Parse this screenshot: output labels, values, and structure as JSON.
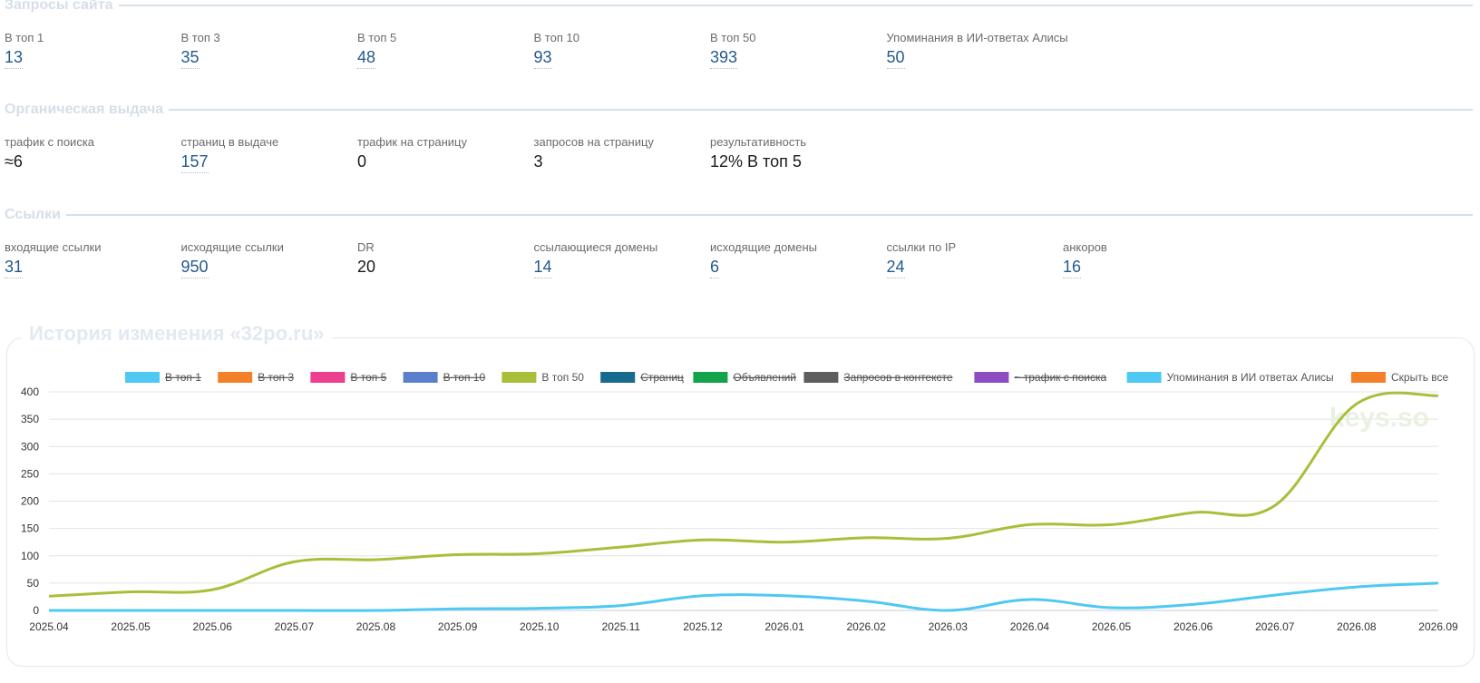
{
  "sections": {
    "queries": {
      "title": "Запросы сайта",
      "items": [
        {
          "label": "В топ 1",
          "value": "13",
          "link": true
        },
        {
          "label": "В топ 3",
          "value": "35",
          "link": true
        },
        {
          "label": "В топ 5",
          "value": "48",
          "link": true
        },
        {
          "label": "В топ 10",
          "value": "93",
          "link": true
        },
        {
          "label": "В топ 50",
          "value": "393",
          "link": true
        },
        {
          "label": "Упоминания в ИИ-ответах Алисы",
          "value": "50",
          "link": true
        }
      ]
    },
    "organic": {
      "title": "Органическая выдача",
      "items": [
        {
          "label": "трафик с поиска",
          "value": "≈6",
          "link": false
        },
        {
          "label": "страниц в выдаче",
          "value": "157",
          "link": true
        },
        {
          "label": "трафик на страницу",
          "value": "0",
          "link": false
        },
        {
          "label": "запросов на страницу",
          "value": "3",
          "link": false
        },
        {
          "label": "результативность",
          "value": "12% В топ 5",
          "link": false
        }
      ]
    },
    "links": {
      "title": "Ссылки",
      "items": [
        {
          "label": "входящие ссылки",
          "value": "31",
          "link": true
        },
        {
          "label": "исходящие ссылки",
          "value": "950",
          "link": true
        },
        {
          "label": "DR",
          "value": "20",
          "link": false
        },
        {
          "label": "ссылающиеся домены",
          "value": "14",
          "link": true
        },
        {
          "label": "исходящие домены",
          "value": "6",
          "link": true
        },
        {
          "label": "ссылки по IP",
          "value": "24",
          "link": true
        },
        {
          "label": "анкоров",
          "value": "16",
          "link": true
        }
      ]
    }
  },
  "history": {
    "title": "История изменения «32po.ru»",
    "watermark": "keys.so"
  },
  "chart_data": {
    "type": "line",
    "categories": [
      "2025.04",
      "2025.05",
      "2025.06",
      "2025.07",
      "2025.08",
      "2025.09",
      "2025.10",
      "2025.11",
      "2025.12",
      "2026.01",
      "2026.02",
      "2026.03",
      "2026.04",
      "2026.05",
      "2026.06",
      "2026.07",
      "2026.08",
      "2026.09"
    ],
    "ylim": [
      0,
      400
    ],
    "yticks": [
      0,
      50,
      100,
      150,
      200,
      250,
      300,
      350,
      400
    ],
    "grid": true,
    "legend_position": "top",
    "legend": [
      {
        "name": "В топ 1",
        "color": "#4fc8f2",
        "active": false
      },
      {
        "name": "В топ 3",
        "color": "#f5802a",
        "active": false
      },
      {
        "name": "В топ 5",
        "color": "#ec3f8e",
        "active": false
      },
      {
        "name": "В топ 10",
        "color": "#5b80cb",
        "active": false
      },
      {
        "name": "В топ 50",
        "color": "#a9bf3a",
        "active": true
      },
      {
        "name": "Страниц",
        "color": "#176a8e",
        "active": false
      },
      {
        "name": "Объявлений",
        "color": "#13a34c",
        "active": false
      },
      {
        "name": "Запросов в контексте",
        "color": "#5e5e5e",
        "active": false
      },
      {
        "name": "~ трафик с поиска",
        "color": "#8d4cc2",
        "active": false
      },
      {
        "name": "Упоминания в ИИ ответах Алисы",
        "color": "#4fc8f2",
        "active": true
      },
      {
        "name": "Скрыть все",
        "color": "#f5802a",
        "active": true
      }
    ],
    "series": [
      {
        "name": "В топ 50",
        "color": "#a9bf3a",
        "values": [
          26,
          34,
          38,
          89,
          93,
          102,
          104,
          116,
          129,
          125,
          133,
          132,
          157,
          157,
          179,
          192,
          378,
          393
        ]
      },
      {
        "name": "Упоминания в ИИ ответах Алисы",
        "color": "#4fc8f2",
        "values": [
          0,
          0,
          0,
          0,
          0,
          3,
          4,
          9,
          27,
          27,
          17,
          0,
          20,
          5,
          11,
          28,
          43,
          50
        ]
      }
    ]
  }
}
